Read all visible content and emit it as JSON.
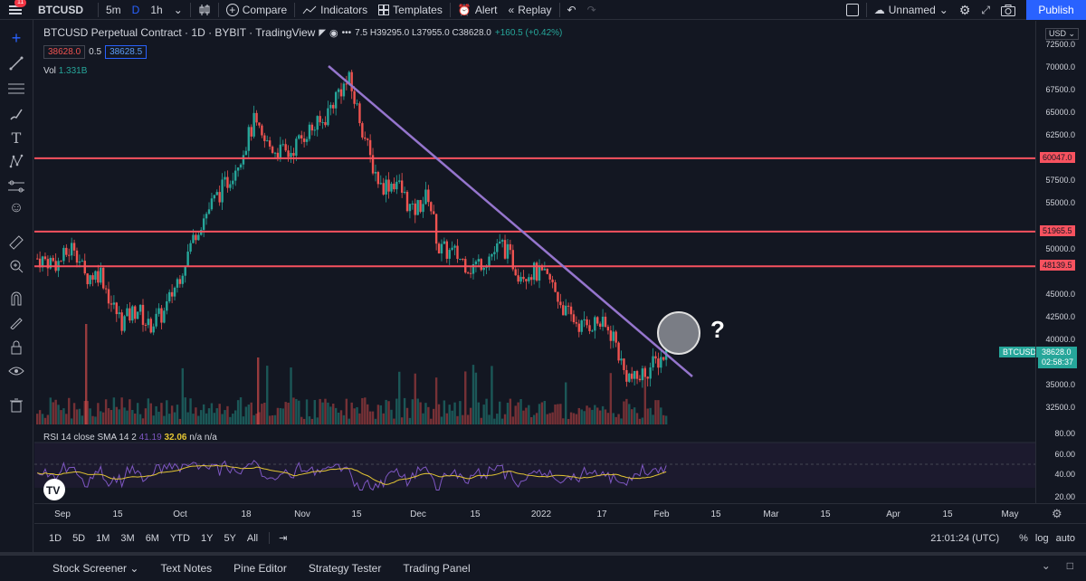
{
  "topbar": {
    "menu_badge": "11",
    "symbol": "BTCUSD",
    "timeframes": [
      "5m",
      "D",
      "1h"
    ],
    "compare": "Compare",
    "indicators": "Indicators",
    "templates": "Templates",
    "alert": "Alert",
    "replay": "Replay",
    "layout_name": "Unnamed",
    "publish": "Publish"
  },
  "legend": {
    "title": "BTCUSD Perpetual Contract · 1D · BYBIT · TradingView",
    "ohlc": "7.5 H39295.0 L37955.0 C38628.0",
    "change": "+160.5 (+0.42%)",
    "bid": "38628.0",
    "spread": "0.5",
    "ask": "38628.5",
    "vol_label": "Vol",
    "vol_value": "1.331B",
    "rsi_label": "RSI 14 close SMA 14 2",
    "rsi_value": "41.19",
    "rsi_sma": "32.06",
    "rsi_na": "n/a n/a"
  },
  "price_axis": {
    "currency": "USD",
    "labels": [
      "72500.0",
      "70000.0",
      "67500.0",
      "65000.0",
      "62500.0",
      "57500.0",
      "55000.0",
      "50000.0",
      "45000.0",
      "42500.0",
      "40000.0",
      "35000.0",
      "32500.0"
    ],
    "rsi_labels": [
      "80.00",
      "60.00",
      "40.00",
      "20.00"
    ],
    "level_tags": [
      "60047.0",
      "51965.5",
      "48139.5"
    ],
    "current_price": "38628.0",
    "countdown": "02:58:37",
    "symbol_tag": "BTCUSD"
  },
  "time_axis": {
    "labels": [
      "Sep",
      "15",
      "Oct",
      "18",
      "Nov",
      "15",
      "Dec",
      "15",
      "2022",
      "17",
      "Feb",
      "15",
      "Mar",
      "15",
      "Apr",
      "15",
      "May"
    ]
  },
  "range_bar": {
    "ranges": [
      "1D",
      "5D",
      "1M",
      "3M",
      "6M",
      "YTD",
      "1Y",
      "5Y",
      "All"
    ],
    "clock": "21:01:24 (UTC)",
    "percent": "%",
    "log": "log",
    "auto": "auto"
  },
  "bottom_tabs": [
    "Stock Screener",
    "Text Notes",
    "Pine Editor",
    "Strategy Tester",
    "Trading Panel"
  ],
  "annotation": {
    "question": "?"
  },
  "colors": {
    "background": "#131722",
    "up": "#26a69a",
    "down": "#ef5350",
    "level_line": "#f7525f",
    "trend_line": "#9575cd",
    "accent": "#2962ff",
    "rsi": "#7e57c2",
    "rsi_sma": "#e3c533"
  },
  "chart_data": {
    "type": "candlestick",
    "price_levels": [
      60047.0,
      51965.5,
      48139.5
    ],
    "current_close": 38628.0,
    "trendline": {
      "from_price": 70000,
      "to_price": 36000
    },
    "ylim": [
      32500,
      72500
    ]
  }
}
